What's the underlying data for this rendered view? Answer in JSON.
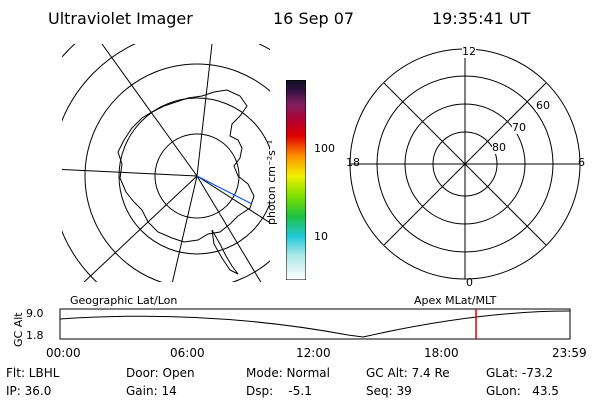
{
  "header": {
    "instrument": "Ultraviolet Imager",
    "date": "16 Sep 07",
    "time": "19:35:41 UT"
  },
  "colorbar": {
    "label": "photon cm⁻²s⁻¹",
    "ticks": [
      "100",
      "10"
    ]
  },
  "left_panel": {
    "caption": "Geographic Lat/Lon"
  },
  "right_panel": {
    "caption": "Apex  MLat/MLT",
    "mlt_labels": [
      "12",
      "18",
      "6",
      "0"
    ],
    "lat_labels": [
      "60",
      "70",
      "80"
    ]
  },
  "altitude_strip": {
    "ylabel": "GC Alt",
    "y_ticks": [
      "9.0",
      "1.8"
    ],
    "x_ticks": [
      "00:00",
      "06:00",
      "12:00",
      "18:00",
      "23:59"
    ]
  },
  "status": {
    "flt": "Flt: LBHL",
    "ip": "IP: 36.0",
    "door": "Door: Open",
    "gain": "Gain: 14",
    "mode": "Mode: Normal",
    "dsp": "Dsp:    -5.1",
    "gc_alt": "GC Alt: 7.4 Re",
    "seq": "Seq: 39",
    "glat": "GLat: -73.2",
    "glon": "GLon:   43.5"
  },
  "colors": {
    "marker": "#e00000",
    "track": "#0050ff"
  }
}
